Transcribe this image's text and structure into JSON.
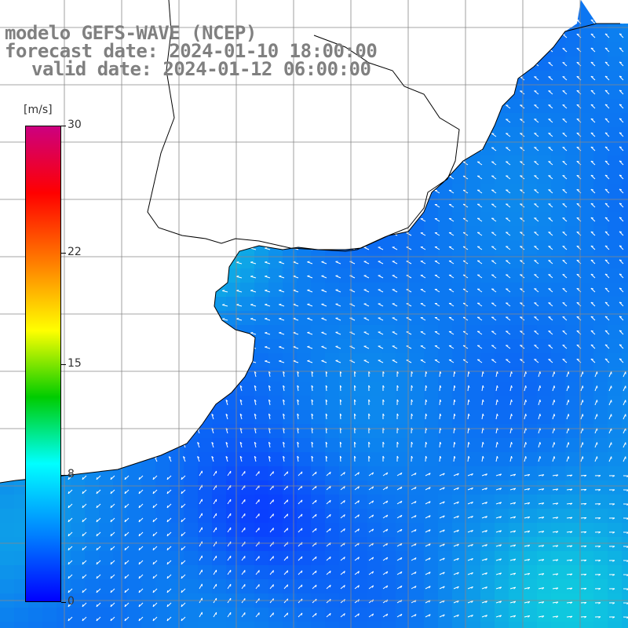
{
  "title": {
    "line1": "modelo GEFS-WAVE (NCEP)",
    "line2": "forecast date: 2024-01-10 18:00:00",
    "line3": "valid date: 2024-01-12 06:00:00"
  },
  "colorbar": {
    "unit": "[m/s]",
    "ticks": [
      "30",
      "22",
      "15",
      "8",
      "0"
    ],
    "tick_values": [
      30,
      22,
      15,
      8,
      0
    ],
    "range": [
      0,
      30
    ],
    "colors": [
      "#0000ff",
      "#0080ff",
      "#00ffff",
      "#00cc00",
      "#ffff00",
      "#ff8000",
      "#ff0000",
      "#cc0080"
    ]
  },
  "map": {
    "land_color": "#ffffff",
    "grid_color": "#888888",
    "arrow_color": "#ffffff",
    "field_low_color": "#0a3cff",
    "field_high_color": "#10e8d8"
  }
}
